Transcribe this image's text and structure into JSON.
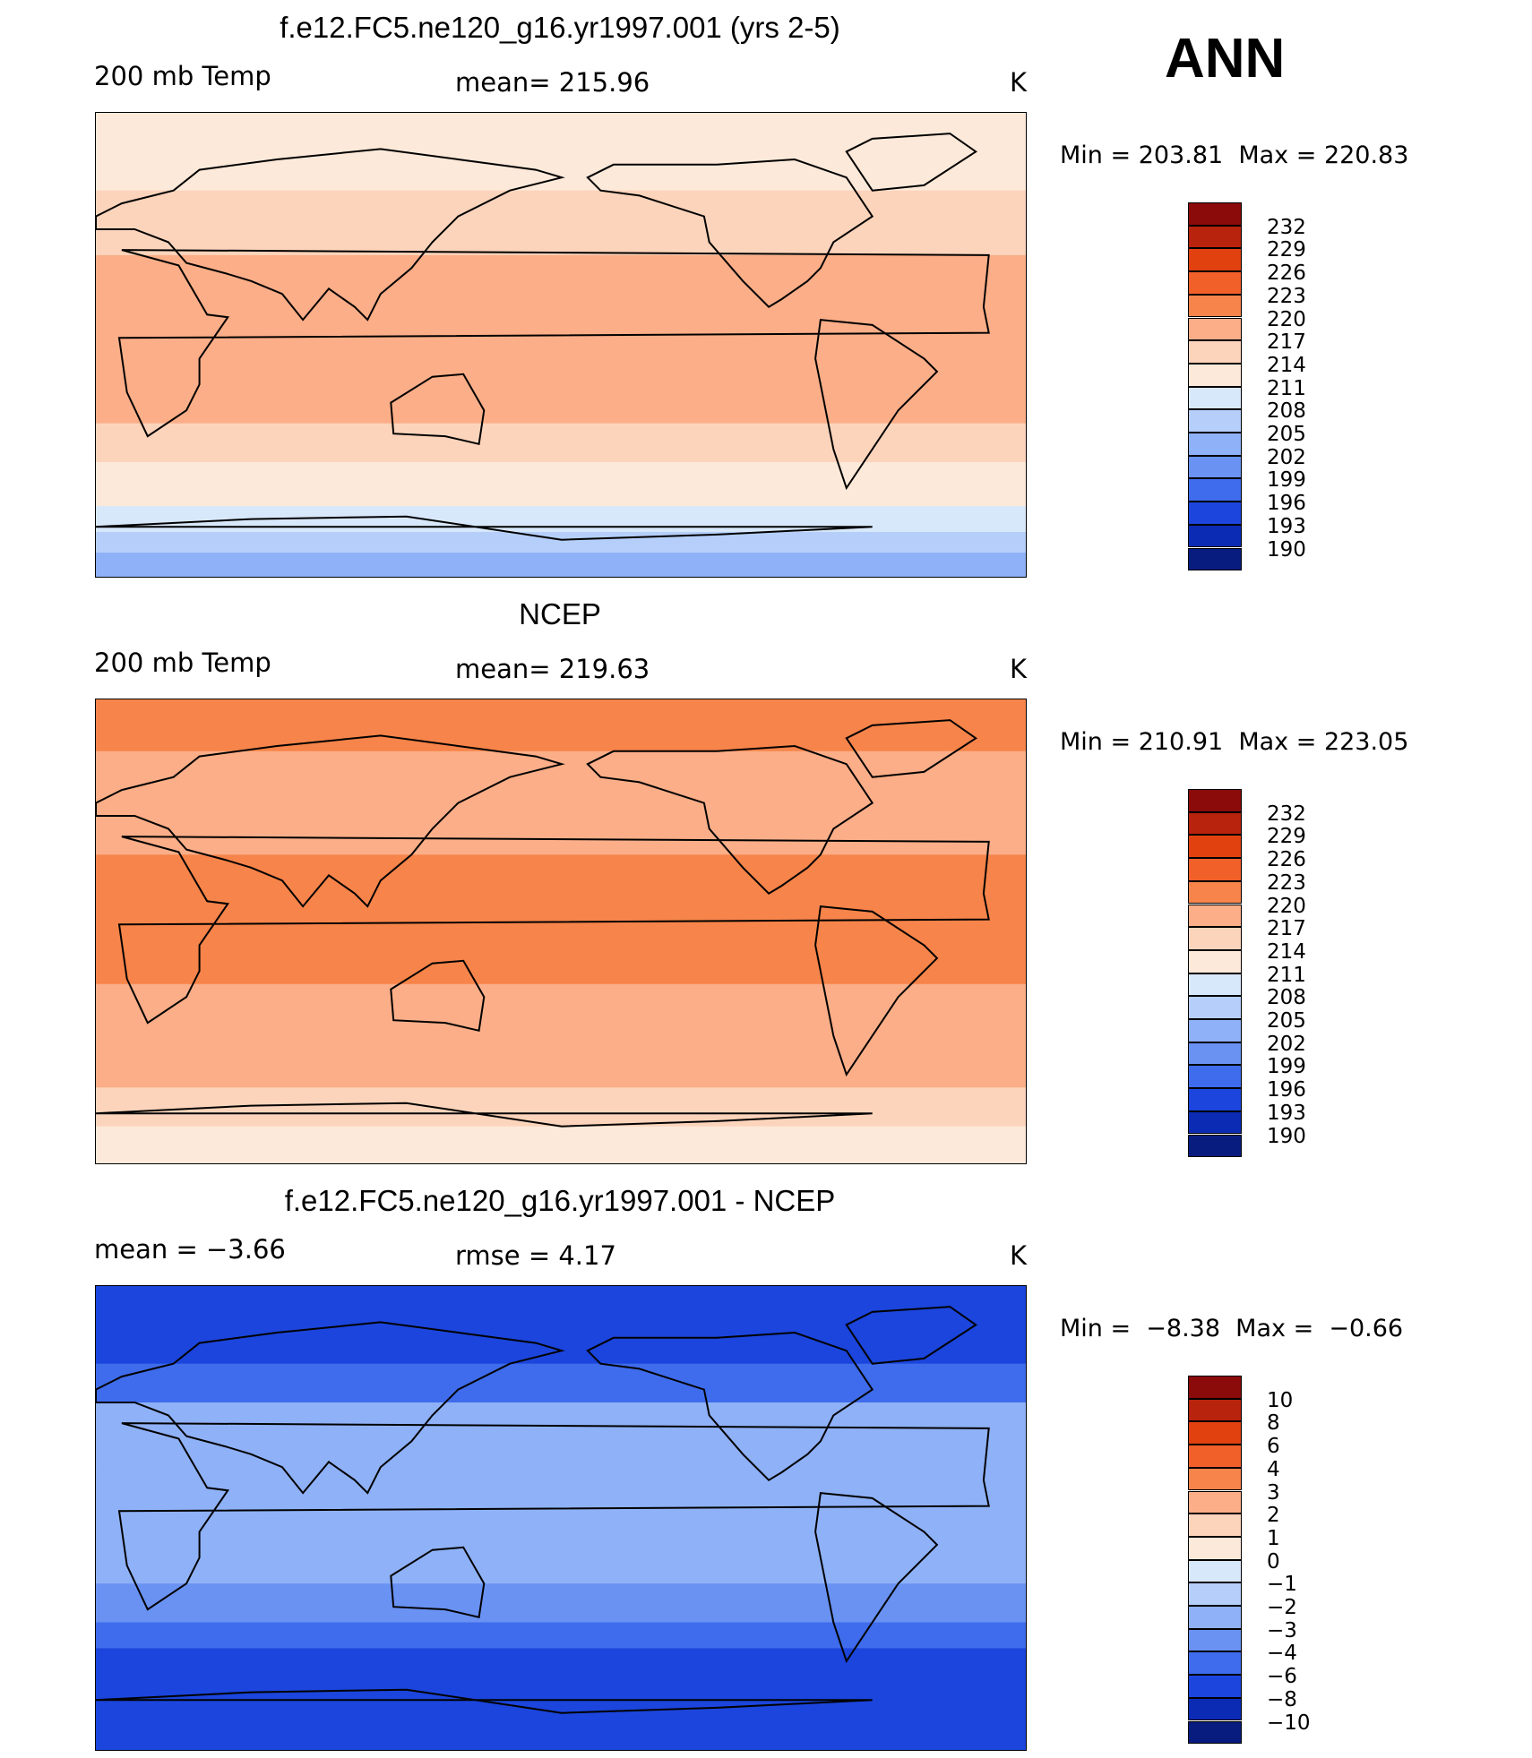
{
  "season": "ANN",
  "panels": [
    {
      "title": "f.e12.FC5.ne120_g16.yr1997.001 (yrs 2-5)",
      "left": "200 mb Temp",
      "center": "mean= 215.96",
      "right": "K",
      "min_max": "Min = 203.81  Max = 220.83",
      "levels": [
        "232",
        "229",
        "226",
        "223",
        "220",
        "217",
        "214",
        "211",
        "208",
        "205",
        "202",
        "199",
        "196",
        "193",
        "190"
      ],
      "colors": [
        "#8b0a0a",
        "#b8230d",
        "#e0410f",
        "#f2602a",
        "#f7844a",
        "#fbae88",
        "#fcd4bb",
        "#fde9d9",
        "#d8e8fb",
        "#b5cffa",
        "#8fb1f7",
        "#6a92f3",
        "#3f6cec",
        "#1b45dc",
        "#0b2bb5",
        "#081c80"
      ],
      "bands": [
        {
          "lat": 90,
          "color": "#fde9d9"
        },
        {
          "lat": 60,
          "color": "#fcd4bb"
        },
        {
          "lat": 35,
          "color": "#fbae88"
        },
        {
          "lat": -30,
          "color": "#fcd4bb"
        },
        {
          "lat": -45,
          "color": "#fde9d9"
        },
        {
          "lat": -62,
          "color": "#d8e8fb"
        },
        {
          "lat": -72,
          "color": "#b5cffa"
        },
        {
          "lat": -80,
          "color": "#8fb1f7"
        }
      ]
    },
    {
      "title": "NCEP",
      "left": "200 mb Temp",
      "center": "mean= 219.63",
      "right": "K",
      "min_max": "Min = 210.91  Max = 223.05",
      "levels": [
        "232",
        "229",
        "226",
        "223",
        "220",
        "217",
        "214",
        "211",
        "208",
        "205",
        "202",
        "199",
        "196",
        "193",
        "190"
      ],
      "colors": [
        "#8b0a0a",
        "#b8230d",
        "#e0410f",
        "#f2602a",
        "#f7844a",
        "#fbae88",
        "#fcd4bb",
        "#fde9d9",
        "#d8e8fb",
        "#b5cffa",
        "#8fb1f7",
        "#6a92f3",
        "#3f6cec",
        "#1b45dc",
        "#0b2bb5",
        "#081c80"
      ],
      "bands": [
        {
          "lat": 90,
          "color": "#f7844a"
        },
        {
          "lat": 70,
          "color": "#fbae88"
        },
        {
          "lat": 30,
          "color": "#f7844a"
        },
        {
          "lat": -20,
          "color": "#fbae88"
        },
        {
          "lat": -60,
          "color": "#fcd4bb"
        },
        {
          "lat": -75,
          "color": "#fde9d9"
        }
      ]
    },
    {
      "title": "f.e12.FC5.ne120_g16.yr1997.001 - NCEP",
      "left": "mean =  −3.66",
      "center": "rmse =    4.17",
      "right": "K",
      "min_max": "Min =  −8.38  Max =  −0.66",
      "levels": [
        "10",
        "8",
        "6",
        "4",
        "3",
        "2",
        "1",
        "0",
        "−1",
        "−2",
        "−3",
        "−4",
        "−6",
        "−8",
        "−10"
      ],
      "colors": [
        "#8b0a0a",
        "#b8230d",
        "#e0410f",
        "#f2602a",
        "#f7844a",
        "#fbae88",
        "#fcd4bb",
        "#fde9d9",
        "#d8e8fb",
        "#b5cffa",
        "#8fb1f7",
        "#6a92f3",
        "#3f6cec",
        "#1b45dc",
        "#0b2bb5",
        "#081c80"
      ],
      "bands": [
        {
          "lat": 90,
          "color": "#1b45dc"
        },
        {
          "lat": 60,
          "color": "#3f6cec"
        },
        {
          "lat": 45,
          "color": "#8fb1f7"
        },
        {
          "lat": 20,
          "color": "#8fb1f7"
        },
        {
          "lat": -25,
          "color": "#6a92f3"
        },
        {
          "lat": -40,
          "color": "#3f6cec"
        },
        {
          "lat": -50,
          "color": "#1b45dc"
        }
      ]
    }
  ]
}
